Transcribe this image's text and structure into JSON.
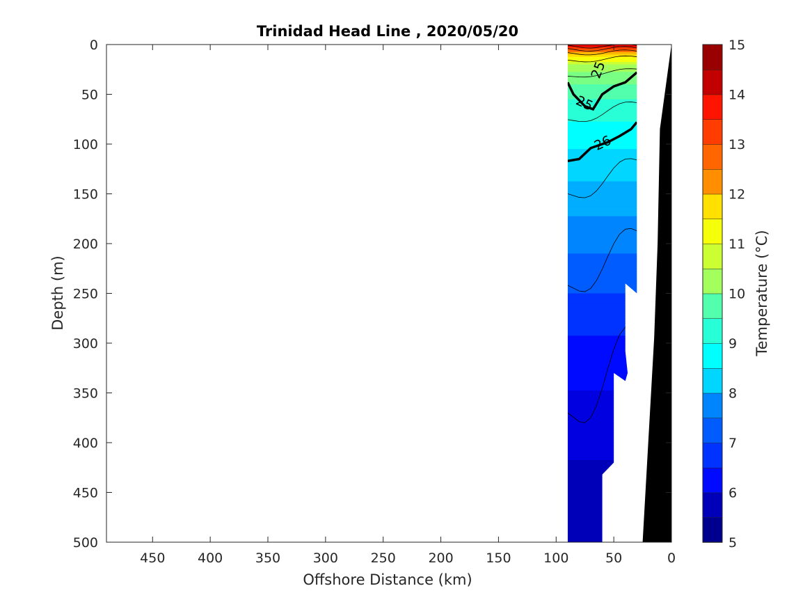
{
  "chart_data": {
    "type": "heatmap",
    "title": "Trinidad Head Line , 2020/05/20",
    "xlabel": "Offshore Distance (km)",
    "ylabel": "Depth (m)",
    "xlim": [
      490,
      0
    ],
    "ylim": [
      0,
      500
    ],
    "x_reversed": true,
    "y_reversed": true,
    "x_ticks": [
      450,
      400,
      350,
      300,
      250,
      200,
      150,
      100,
      50,
      0
    ],
    "y_ticks": [
      0,
      50,
      100,
      150,
      200,
      250,
      300,
      350,
      400,
      450,
      500
    ],
    "colorbar": {
      "label": "Temperature (°C)",
      "range": [
        5,
        15
      ],
      "ticks": [
        5,
        6,
        7,
        8,
        9,
        10,
        11,
        12,
        13,
        14,
        15
      ],
      "levels": [
        5,
        5.5,
        6,
        6.5,
        7,
        7.5,
        8,
        8.5,
        9,
        9.5,
        10,
        10.5,
        11,
        11.5,
        12,
        12.5,
        13,
        13.5,
        14,
        14.5,
        15
      ],
      "colors": [
        "#00008f",
        "#0000b8",
        "#0000e0",
        "#000aff",
        "#0033ff",
        "#005cff",
        "#0085ff",
        "#00adff",
        "#00d6ff",
        "#00ffff",
        "#29ffd6",
        "#52ffad",
        "#7aff85",
        "#a3ff5c",
        "#ccff33",
        "#f5ff0a",
        "#ffe000",
        "#ffb800",
        "#ff8f00",
        "#ff6600",
        "#ff3d00",
        "#ff1400",
        "#eb0000",
        "#c20000",
        "#990000"
      ]
    },
    "section_x_range": [
      90,
      30
    ],
    "temperature_profile": [
      {
        "depth": 0,
        "temperature": 14.5
      },
      {
        "depth": 5,
        "temperature": 13.0
      },
      {
        "depth": 10,
        "temperature": 11.8
      },
      {
        "depth": 20,
        "temperature": 10.6
      },
      {
        "depth": 35,
        "temperature": 9.9
      },
      {
        "depth": 60,
        "temperature": 9.3
      },
      {
        "depth": 90,
        "temperature": 8.8
      },
      {
        "depth": 130,
        "temperature": 8.3
      },
      {
        "depth": 180,
        "temperature": 7.7
      },
      {
        "depth": 230,
        "temperature": 7.2
      },
      {
        "depth": 280,
        "temperature": 6.7
      },
      {
        "depth": 330,
        "temperature": 6.3
      },
      {
        "depth": 400,
        "temperature": 5.9
      },
      {
        "depth": 450,
        "temperature": 5.6
      },
      {
        "depth": 500,
        "temperature": 5.4
      }
    ],
    "bathymetry": [
      {
        "x": 0,
        "depth": 0
      },
      {
        "x": 10,
        "depth": 85
      },
      {
        "x": 12,
        "depth": 200
      },
      {
        "x": 15,
        "depth": 295
      },
      {
        "x": 25,
        "depth": 500
      }
    ],
    "density_contours": [
      {
        "label": "25",
        "points": [
          [
            90,
            38
          ],
          [
            85,
            50
          ],
          [
            75,
            62
          ],
          [
            68,
            65
          ],
          [
            60,
            50
          ],
          [
            50,
            42
          ],
          [
            40,
            38
          ],
          [
            30,
            28
          ]
        ]
      },
      {
        "label": "26",
        "points": [
          [
            90,
            117
          ],
          [
            80,
            115
          ],
          [
            70,
            104
          ],
          [
            55,
            98
          ],
          [
            45,
            92
          ],
          [
            35,
            85
          ],
          [
            30,
            78
          ]
        ]
      }
    ],
    "contour_labels": [
      "25",
      "25",
      "26"
    ]
  }
}
